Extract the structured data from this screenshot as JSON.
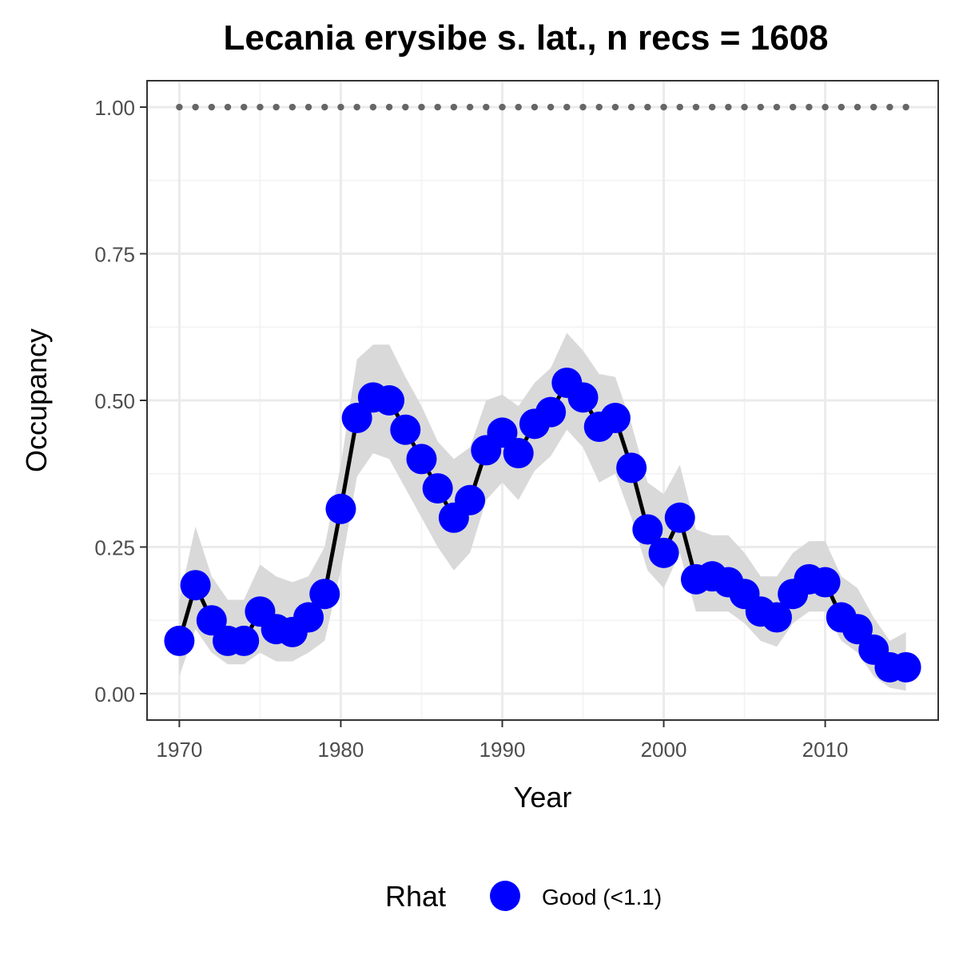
{
  "chart_data": {
    "type": "line",
    "title": "Lecania erysibe s. lat., n recs = 1608",
    "xlabel": "Year",
    "ylabel": "Occupancy",
    "xlim": [
      1968,
      2017
    ],
    "ylim": [
      -0.045,
      1.045
    ],
    "x_ticks": [
      1970,
      1980,
      1990,
      2000,
      2010
    ],
    "x_tick_labels": [
      "1970",
      "1980",
      "1990",
      "2000",
      "2010"
    ],
    "y_ticks": [
      0,
      0.25,
      0.5,
      0.75,
      1.0
    ],
    "y_tick_labels": [
      "0.00",
      "0.25",
      "0.50",
      "0.75",
      "1.00"
    ],
    "grid": true,
    "x": [
      1970,
      1971,
      1972,
      1973,
      1974,
      1975,
      1976,
      1977,
      1978,
      1979,
      1980,
      1981,
      1982,
      1983,
      1984,
      1985,
      1986,
      1987,
      1988,
      1989,
      1990,
      1991,
      1992,
      1993,
      1994,
      1995,
      1996,
      1997,
      1998,
      1999,
      2000,
      2001,
      2002,
      2003,
      2004,
      2005,
      2006,
      2007,
      2008,
      2009,
      2010,
      2011,
      2012,
      2013,
      2014,
      2015
    ],
    "series": [
      {
        "name": "Good (<1.1)",
        "values": [
          0.09,
          0.185,
          0.125,
          0.09,
          0.09,
          0.14,
          0.11,
          0.105,
          0.13,
          0.17,
          0.315,
          0.47,
          0.505,
          0.5,
          0.45,
          0.4,
          0.35,
          0.3,
          0.33,
          0.415,
          0.445,
          0.41,
          0.46,
          0.48,
          0.53,
          0.505,
          0.455,
          0.47,
          0.385,
          0.28,
          0.24,
          0.3,
          0.195,
          0.2,
          0.19,
          0.17,
          0.14,
          0.13,
          0.17,
          0.195,
          0.19,
          0.13,
          0.11,
          0.075,
          0.045,
          0.045
        ],
        "lower": [
          0.03,
          0.11,
          0.07,
          0.05,
          0.05,
          0.07,
          0.055,
          0.055,
          0.07,
          0.09,
          0.21,
          0.37,
          0.41,
          0.4,
          0.35,
          0.3,
          0.25,
          0.21,
          0.24,
          0.33,
          0.36,
          0.33,
          0.38,
          0.405,
          0.45,
          0.42,
          0.36,
          0.375,
          0.3,
          0.21,
          0.18,
          0.24,
          0.14,
          0.14,
          0.14,
          0.12,
          0.09,
          0.08,
          0.12,
          0.14,
          0.14,
          0.09,
          0.07,
          0.03,
          0.01,
          0.005
        ],
        "upper": [
          0.16,
          0.285,
          0.2,
          0.16,
          0.16,
          0.22,
          0.2,
          0.19,
          0.2,
          0.25,
          0.39,
          0.57,
          0.595,
          0.595,
          0.54,
          0.49,
          0.43,
          0.4,
          0.42,
          0.5,
          0.51,
          0.49,
          0.53,
          0.555,
          0.615,
          0.585,
          0.545,
          0.54,
          0.46,
          0.36,
          0.34,
          0.39,
          0.28,
          0.27,
          0.27,
          0.24,
          0.2,
          0.2,
          0.24,
          0.26,
          0.26,
          0.2,
          0.18,
          0.13,
          0.09,
          0.105
        ],
        "color": "#0000ff"
      }
    ],
    "reference_line": {
      "value": 1.0,
      "style": "dotted",
      "color": "#666666"
    },
    "ribbon_color": "#d9d9d9",
    "line_color": "#000000",
    "legend": {
      "title": "Rhat",
      "entries": [
        "Good (<1.1)"
      ],
      "position": "bottom"
    }
  }
}
